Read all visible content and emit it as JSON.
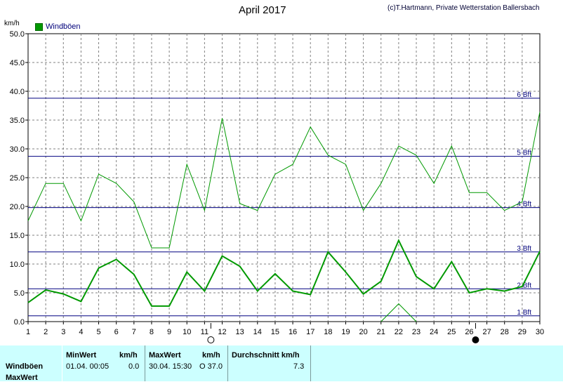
{
  "header": {
    "title": "April 2017",
    "copyright": "(c)T.Hartmann, Private Wetterstation Ballersbach",
    "unit": "km/h"
  },
  "chart_data": {
    "type": "line",
    "title": "April 2017",
    "ylabel": "km/h",
    "xlabel": "",
    "ylim": [
      0,
      50
    ],
    "xlim": [
      1,
      30
    ],
    "yticks": [
      "0.0",
      "5.0",
      "10.0",
      "15.0",
      "20.0",
      "25.0",
      "30.0",
      "35.0",
      "40.0",
      "45.0",
      "50.0"
    ],
    "x": [
      1,
      2,
      3,
      4,
      5,
      6,
      7,
      8,
      9,
      10,
      11,
      12,
      13,
      14,
      15,
      16,
      17,
      18,
      19,
      20,
      21,
      22,
      23,
      24,
      25,
      26,
      27,
      28,
      29,
      30
    ],
    "grid": true,
    "legend": {
      "placement": "top-left",
      "entries": [
        "Windböen"
      ]
    },
    "series": [
      {
        "name": "Windböen",
        "color": "#009900",
        "width": 2,
        "values": [
          3.3,
          5.5,
          4.8,
          3.5,
          9.3,
          10.8,
          8.2,
          2.7,
          2.7,
          8.6,
          5.3,
          11.4,
          9.6,
          5.3,
          8.3,
          5.3,
          4.7,
          12.1,
          8.6,
          4.8,
          7.0,
          14.1,
          7.8,
          5.7,
          10.4,
          5.0,
          5.7,
          5.3,
          6.1,
          12.2
        ]
      },
      {
        "color": "#009900",
        "width": 1,
        "values": [
          17.5,
          24.0,
          24.0,
          17.5,
          25.6,
          24.0,
          20.8,
          12.8,
          12.8,
          27.3,
          19.3,
          35.3,
          20.5,
          19.3,
          25.6,
          27.3,
          33.8,
          28.9,
          27.3,
          19.3,
          24.0,
          30.5,
          28.9,
          24.0,
          30.5,
          22.4,
          22.4,
          19.3,
          20.8,
          36.4
        ]
      },
      {
        "color": "#009900",
        "width": 1,
        "x": [
          21,
          22,
          23
        ],
        "values": [
          0.0,
          3.1,
          0.0
        ]
      }
    ],
    "beaufort_lines": [
      {
        "label": "1 Bft",
        "value": 1.0
      },
      {
        "label": "2 Bft",
        "value": 5.7
      },
      {
        "label": "3 Bft",
        "value": 12.1
      },
      {
        "label": "4 Bft",
        "value": 19.8
      },
      {
        "label": "5 Bft",
        "value": 28.7
      },
      {
        "label": "6 Bft",
        "value": 38.8
      }
    ],
    "moon_phases": [
      {
        "day": 11,
        "phase": "full-moon"
      },
      {
        "day": 26,
        "phase": "new-moon"
      }
    ]
  },
  "footer": {
    "row_labels": [
      "Windböen",
      "MaxWert"
    ],
    "min_header": "MinWert",
    "min_unit": "km/h",
    "min_datetime": "01.04.  00:05",
    "min_value": "0.0",
    "max_header": "MaxWert",
    "max_unit": "km/h",
    "max_datetime": "30.04.  15:30",
    "max_value": "O 37.0",
    "avg_header": "Durchschnitt km/h",
    "avg_value": "7.3"
  }
}
